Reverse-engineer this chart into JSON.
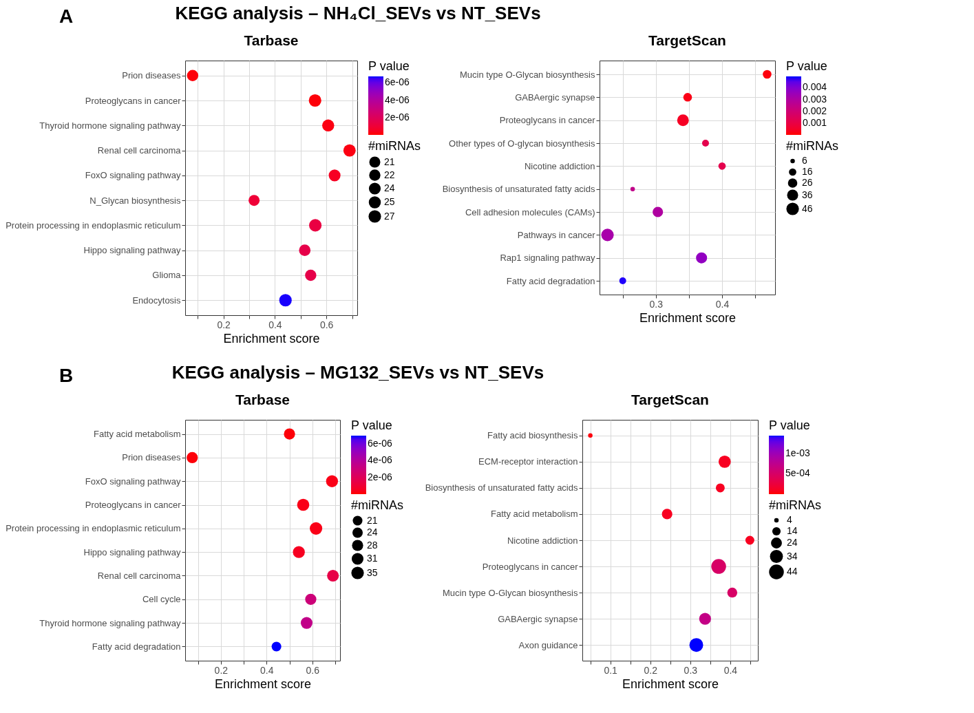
{
  "chart_data": [
    {
      "type": "bubble",
      "orientation": "horizontal",
      "title": "Tarbase",
      "xlabel": "Enrichment score",
      "legend_title": "#miRNAs",
      "clabel": "P value",
      "grid": true,
      "annotations": [
        "A",
        "KEGG analysis – NH₄Cl_SEVs vs NT_SEVs"
      ],
      "categories": [
        "Prion diseases",
        "Proteoglycans in cancer",
        "Thyroid hormone signaling pathway",
        "Renal cell carcinoma",
        "FoxO signaling pathway",
        "N_Glycan biosynthesis",
        "Protein processing in endoplasmic reticulum",
        "Hippo signaling pathway",
        "Glioma",
        "Endocytosis"
      ],
      "values": [
        0.08,
        0.556,
        0.607,
        0.69,
        0.632,
        0.319,
        0.557,
        0.516,
        0.539,
        0.441
      ],
      "sizes": [
        22,
        27,
        25,
        26,
        24,
        21,
        27,
        23,
        22,
        27
      ],
      "size_legend": [
        21,
        22,
        24,
        25,
        27
      ],
      "cvalues": [
        1e-07,
        1e-07,
        2e-07,
        2e-07,
        5e-07,
        1e-06,
        1.3e-06,
        1.5e-06,
        1.5e-06,
        6.7e-06
      ],
      "clim": [
        0,
        6.75e-06
      ],
      "cticks": [
        {
          "value": 2e-06,
          "label": "2e-06"
        },
        {
          "value": 4e-06,
          "label": "4e-06"
        },
        {
          "value": 6e-06,
          "label": "6e-06"
        }
      ],
      "xlim": [
        0.051,
        0.72
      ],
      "xticks": [
        {
          "value": 0.1,
          "label": null
        },
        0.2,
        {
          "value": 0.3,
          "label": null
        },
        0.4,
        {
          "value": 0.5,
          "label": null
        },
        0.6,
        {
          "value": 0.7,
          "label": null
        }
      ]
    },
    {
      "type": "bubble",
      "orientation": "horizontal",
      "title": "TargetScan",
      "xlabel": "Enrichment score",
      "legend_title": "#miRNAs",
      "clabel": "P value",
      "grid": true,
      "categories": [
        "Mucin type O-Glycan biosynthesis",
        "GABAergic synapse",
        "Proteoglycans in cancer",
        "Other types of O-glycan biosynthesis",
        "Nicotine addiction",
        "Biosynthesis of unsaturated fatty acids",
        "Cell adhesion molecules (CAMs)",
        "Pathways in cancer",
        "Rap1 signaling pathway",
        "Fatty acid degradation"
      ],
      "values": [
        0.468,
        0.348,
        0.341,
        0.375,
        0.4,
        0.265,
        0.303,
        0.227,
        0.369,
        0.25
      ],
      "sizes": [
        22,
        22,
        40,
        14,
        16,
        6,
        32,
        46,
        36,
        14
      ],
      "size_legend": [
        6,
        16,
        26,
        36,
        46
      ],
      "cvalues": [
        0.0001,
        0.0002,
        0.0004,
        0.0012,
        0.0012,
        0.0025,
        0.003,
        0.0032,
        0.0037,
        0.0049
      ],
      "clim": [
        0,
        0.00496
      ],
      "cticks": [
        0.001,
        0.002,
        0.003,
        0.004
      ],
      "xlim": [
        0.215,
        0.48
      ],
      "xticks": [
        {
          "value": 0.25,
          "label": null
        },
        0.3,
        {
          "value": 0.35,
          "label": null
        },
        0.4,
        {
          "value": 0.45,
          "label": null
        }
      ]
    },
    {
      "type": "bubble",
      "orientation": "horizontal",
      "title": "Tarbase",
      "xlabel": "Enrichment score",
      "legend_title": "#miRNAs",
      "clabel": "P value",
      "grid": true,
      "annotations": [
        "B",
        "KEGG analysis – MG132_SEVs vs NT_SEVs"
      ],
      "categories": [
        "Fatty acid metabolism",
        "Prion diseases",
        "FoxO signaling pathway",
        "Proteoglycans in cancer",
        "Protein processing in endoplasmic reticulum",
        "Hippo signaling pathway",
        "Renal cell carcinoma",
        "Cell cycle",
        "Thyroid hormone signaling pathway",
        "Fatty acid degradation"
      ],
      "values": [
        0.5,
        0.075,
        0.686,
        0.56,
        0.616,
        0.541,
        0.69,
        0.593,
        0.575,
        0.443
      ],
      "sizes": [
        28,
        28,
        32,
        33,
        35,
        32,
        31,
        28,
        31,
        21
      ],
      "size_legend": [
        21,
        24,
        28,
        31,
        35
      ],
      "cvalues": [
        1e-07,
        1e-07,
        3e-07,
        3e-07,
        3e-07,
        5e-07,
        1.5e-06,
        3e-06,
        3.5e-06,
        7e-06
      ],
      "clim": [
        0,
        7e-06
      ],
      "cticks": [
        {
          "value": 2e-06,
          "label": "2e-06"
        },
        {
          "value": 4e-06,
          "label": "4e-06"
        },
        {
          "value": 6e-06,
          "label": "6e-06"
        }
      ],
      "xlim": [
        0.044,
        0.721
      ],
      "xticks": [
        {
          "value": 0.1,
          "label": null
        },
        0.2,
        {
          "value": 0.3,
          "label": null
        },
        0.4,
        {
          "value": 0.5,
          "label": null
        },
        0.6,
        {
          "value": 0.7,
          "label": null
        }
      ]
    },
    {
      "type": "bubble",
      "orientation": "horizontal",
      "title": "TargetScan",
      "xlabel": "Enrichment score",
      "legend_title": "#miRNAs",
      "clabel": "P value",
      "grid": true,
      "categories": [
        "Fatty acid biosynthesis",
        "ECM-receptor interaction",
        "Biosynthesis of unsaturated fatty acids",
        "Fatty acid metabolism",
        "Nicotine addiction",
        "Proteoglycans in cancer",
        "Mucin type O-Glycan biosynthesis",
        "GABAergic synapse",
        "Axon guidance"
      ],
      "values": [
        0.05,
        0.386,
        0.375,
        0.242,
        0.449,
        0.371,
        0.405,
        0.337,
        0.315
      ],
      "sizes": [
        4,
        30,
        16,
        22,
        16,
        44,
        20,
        28,
        38
      ],
      "size_legend": [
        4,
        14,
        24,
        34,
        44
      ],
      "cvalues": [
        3e-05,
        0.0001,
        0.0001,
        0.0001,
        0.0001,
        0.0005,
        0.0005,
        0.0007,
        0.00144
      ],
      "clim": [
        0,
        0.00144
      ],
      "cticks": [
        {
          "value": 0.0005,
          "label": "5e-04"
        },
        {
          "value": 0.001,
          "label": "1e-03"
        }
      ],
      "xlim": [
        0.03,
        0.469
      ],
      "xticks": [
        {
          "value": 0.05,
          "label": null
        },
        0.1,
        {
          "value": 0.15,
          "label": null
        },
        0.2,
        {
          "value": 0.25,
          "label": null
        },
        0.3,
        {
          "value": 0.35,
          "label": null
        },
        0.4,
        {
          "value": 0.45,
          "label": null
        }
      ]
    }
  ]
}
